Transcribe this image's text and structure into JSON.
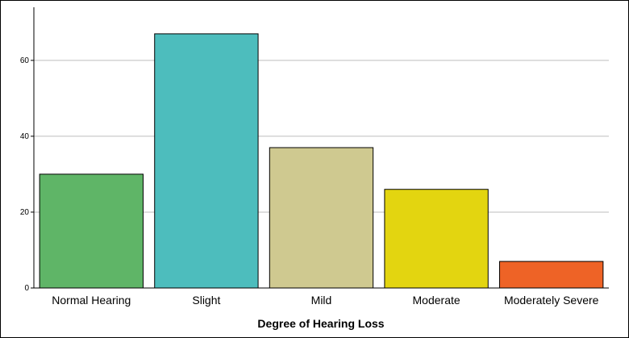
{
  "chart_data": {
    "type": "bar",
    "title": "",
    "xlabel": "Degree of Hearing Loss",
    "ylabel": "",
    "categories": [
      "Normal Hearing",
      "Slight",
      "Mild",
      "Moderate",
      "Moderately Severe"
    ],
    "values": [
      30,
      67,
      37,
      26,
      7
    ],
    "colors": [
      "#5fb567",
      "#4dbdbd",
      "#cfc990",
      "#e3d510",
      "#ee6326"
    ],
    "ylim": [
      0,
      74
    ],
    "yticks": [
      0,
      20,
      40,
      60
    ],
    "grid": true,
    "legend": "none"
  }
}
